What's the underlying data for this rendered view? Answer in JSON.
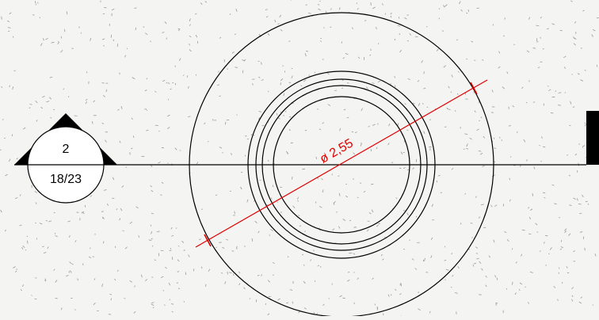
{
  "section_marker": {
    "number": "2",
    "sheet": "18/23"
  },
  "dimension": {
    "label": "ø 2,55"
  },
  "colors": {
    "background": "#f4f4f2",
    "line": "#000000",
    "dimension": "#e00000",
    "texture": "#9a9a9a"
  }
}
